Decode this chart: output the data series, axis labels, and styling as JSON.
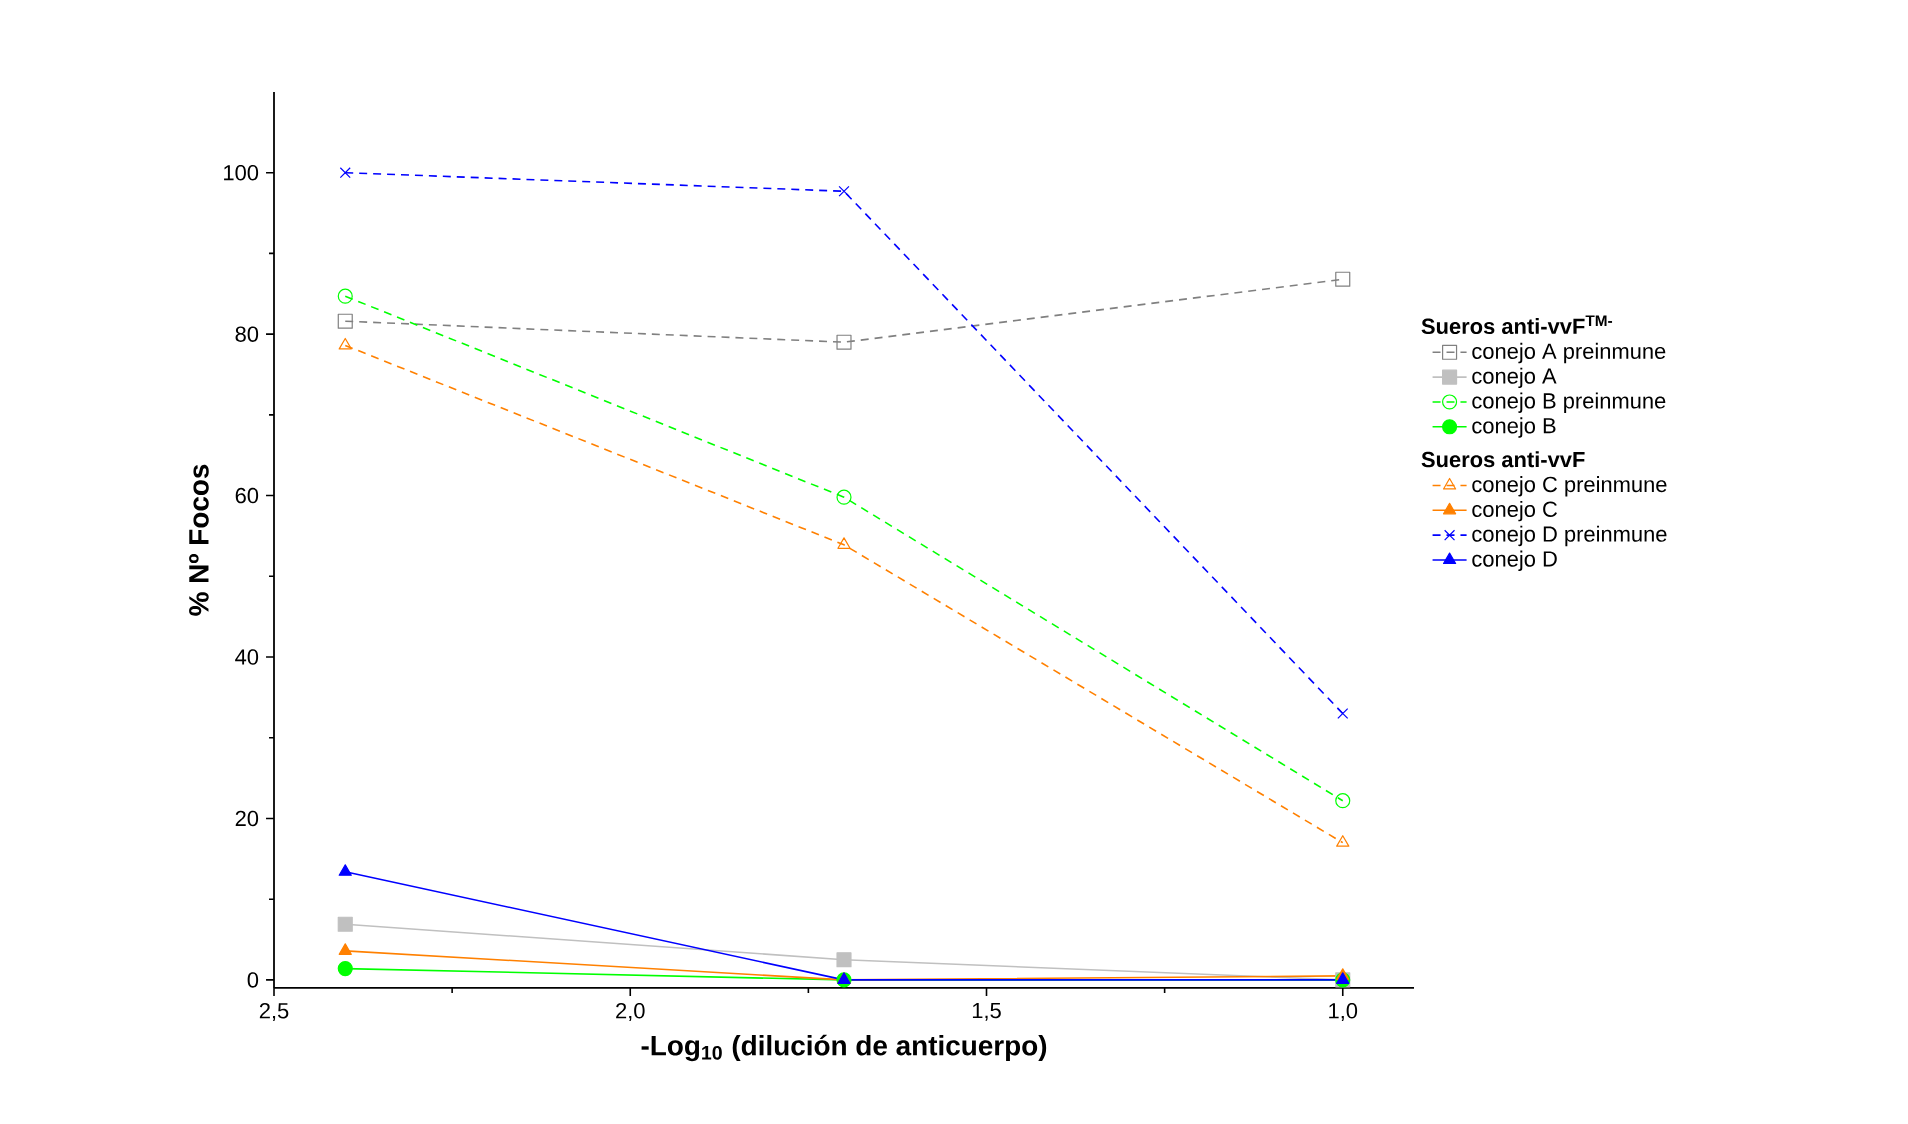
{
  "chart_data": {
    "type": "line",
    "xlabel": "-Log$_{10}$ (dilución de anticuerpo)",
    "ylabel": "% Nº Focos",
    "legend_title": "Sueros anti-vvF$^{TM-}$",
    "annotations": [
      "Sueros anti-vvF"
    ],
    "x": [
      2.4,
      1.7,
      1.0
    ],
    "xlim": [
      2.5,
      0.9
    ],
    "xticks": [
      {
        "value": 2.5,
        "label": "2,5"
      },
      {
        "value": 2.0,
        "label": "2,0"
      },
      {
        "value": 1.5,
        "label": "1,5"
      },
      {
        "value": 1.0,
        "label": "1,0"
      }
    ],
    "ylim": [
      -1,
      110
    ],
    "yticks": [
      0,
      20,
      40,
      60,
      80,
      100
    ],
    "legend": "right",
    "series": [
      {
        "name": "conejo A preinmune",
        "color": "#808080",
        "marker": "square",
        "line_style": "dashed",
        "values": [
          81.6,
          79.0,
          86.8
        ]
      },
      {
        "name": "conejo A",
        "color": "#c0c0c0",
        "marker": "square",
        "line_style": "solid",
        "values": [
          6.9,
          2.5,
          0
        ]
      },
      {
        "name": "conejo B preinmune",
        "color": "#00ff00",
        "marker": "circle",
        "line_style": "dashed",
        "values": [
          84.7,
          59.8,
          22.2
        ]
      },
      {
        "name": "conejo B",
        "color": "#00ff00",
        "marker": "circle",
        "line_style": "solid",
        "values": [
          1.4,
          0,
          0
        ]
      },
      {
        "name": "conejo C preinmune",
        "color": "#ff8000",
        "marker": "triangle",
        "line_style": "dashed",
        "values": [
          78.6,
          53.9,
          17.0
        ]
      },
      {
        "name": "conejo C",
        "color": "#ff8000",
        "marker": "triangle",
        "line_style": "solid",
        "values": [
          3.6,
          0,
          0.5
        ]
      },
      {
        "name": "conejo D preinmune",
        "color": "#0000ff",
        "marker": "cross",
        "line_style": "dashed",
        "values": [
          100,
          97.7,
          33.0
        ]
      },
      {
        "name": "conejo D",
        "color": "#0000ff",
        "marker": "triangle",
        "line_style": "solid",
        "values": [
          13.4,
          0,
          0
        ]
      }
    ]
  }
}
